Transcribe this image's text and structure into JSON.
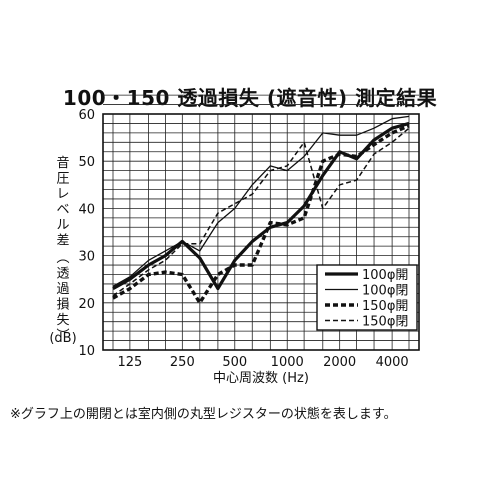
{
  "title": "100・150 透過損失 (遮音性) 測定結果",
  "note": "※グラフ上の開閉とは室内側の丸型レジスターの状態を表します。",
  "chart_data": {
    "type": "line",
    "title": "100・150 透過損失 (遮音性) 測定結果",
    "xlabel": "中心周波数 (Hz)",
    "ylabel_chars": [
      "音",
      "圧",
      "レ",
      "ベ",
      "ル",
      "差"
    ],
    "ylabel_paren_chars": [
      "︵",
      "透",
      "過",
      "損",
      "失",
      "︶"
    ],
    "yunit": "(dB)",
    "x_scale": "log",
    "x": [
      100,
      125,
      160,
      200,
      250,
      315,
      400,
      500,
      630,
      800,
      1000,
      1250,
      1600,
      2000,
      2500,
      3150,
      4000,
      5000
    ],
    "x_tick_labels": [
      "125",
      "250",
      "500",
      "1000",
      "2000",
      "4000"
    ],
    "x_tick_values": [
      125,
      250,
      500,
      1000,
      2000,
      4000
    ],
    "ylim": [
      10,
      60
    ],
    "y_ticks": [
      10,
      20,
      30,
      40,
      50,
      60
    ],
    "grid": true,
    "legend_position": "bottom-right",
    "series": [
      {
        "name": "100φ開",
        "style": "thick-solid",
        "values": [
          23,
          25,
          28,
          30,
          33,
          29.5,
          23,
          29,
          33,
          36,
          37,
          40.5,
          47,
          52,
          50.5,
          54.5,
          57,
          58
        ]
      },
      {
        "name": "100φ閉",
        "style": "thin-solid",
        "values": [
          23.5,
          25.5,
          29,
          31,
          33,
          31,
          37,
          40,
          45,
          49,
          48,
          51,
          56,
          55.5,
          55.5,
          57,
          59,
          59.5
        ]
      },
      {
        "name": "150φ開",
        "style": "thick-dashed",
        "values": [
          21,
          23,
          26,
          26.5,
          26,
          20,
          26,
          28,
          28,
          37,
          36.5,
          38,
          50,
          51.5,
          51,
          53.5,
          56,
          57.5
        ]
      },
      {
        "name": "150φ閉",
        "style": "thin-dashed",
        "values": [
          21.5,
          24,
          27,
          29,
          32.5,
          32.5,
          39,
          41,
          43,
          48,
          49,
          54,
          40,
          45,
          46,
          51.5,
          54,
          57
        ]
      }
    ]
  }
}
